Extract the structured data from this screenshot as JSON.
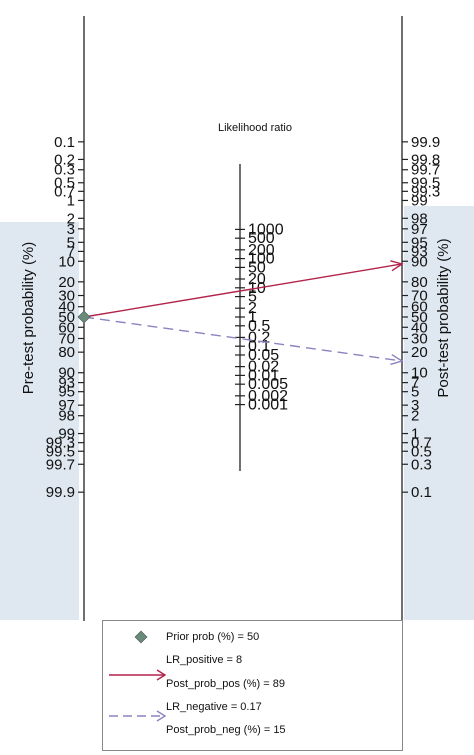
{
  "chart_data": {
    "type": "nomogram",
    "title": "Likelihood ratio",
    "ylabel_left": "Pre-test probability (%)",
    "ylabel_right": "Post-test probability (%)",
    "pretest_ticks": [
      "0.1",
      "0.2",
      "0.3",
      "0.5",
      "0.7",
      "1",
      "2",
      "3",
      "5",
      "7",
      "10",
      "20",
      "30",
      "40",
      "50",
      "60",
      "70",
      "80",
      "90",
      "93",
      "95",
      "97",
      "98",
      "99",
      "99.3",
      "99.5",
      "99.7",
      "99.9"
    ],
    "posttest_ticks": [
      "99.9",
      "99.8",
      "99.7",
      "99.5",
      "99.3",
      "99",
      "98",
      "97",
      "95",
      "93",
      "90",
      "80",
      "70",
      "60",
      "50",
      "40",
      "30",
      "20",
      "10",
      "7",
      "5",
      "3",
      "2",
      "1",
      "0.7",
      "0.5",
      "0.3",
      "0.1"
    ],
    "lr_ticks": [
      "1000",
      "500",
      "200",
      "100",
      "50",
      "20",
      "10",
      "5",
      "2",
      "1",
      "0.5",
      "0.2",
      "0.1",
      "0.05",
      "0.02",
      "0.01",
      "0.005",
      "0.002",
      "0.001"
    ],
    "prior_prob": 50,
    "lr_positive": 8,
    "post_prob_pos": 89,
    "lr_negative": 0.17,
    "post_prob_neg": 15,
    "colors": {
      "positive": "#b2224a",
      "negative": "#8a84c0",
      "prior": "#6a8a7a",
      "background": "#dfe8f0"
    },
    "legend": [
      {
        "label": "Prior prob (%) = 50",
        "symbol": "diamond"
      },
      {
        "label": "LR_positive = 8",
        "symbol": "none"
      },
      {
        "label": "Post_prob_pos (%) = 89",
        "symbol": "solid-arrow"
      },
      {
        "label": "LR_negative = 0.17",
        "symbol": "none"
      },
      {
        "label": "Post_prob_neg (%) = 15",
        "symbol": "dashed-arrow"
      }
    ]
  }
}
